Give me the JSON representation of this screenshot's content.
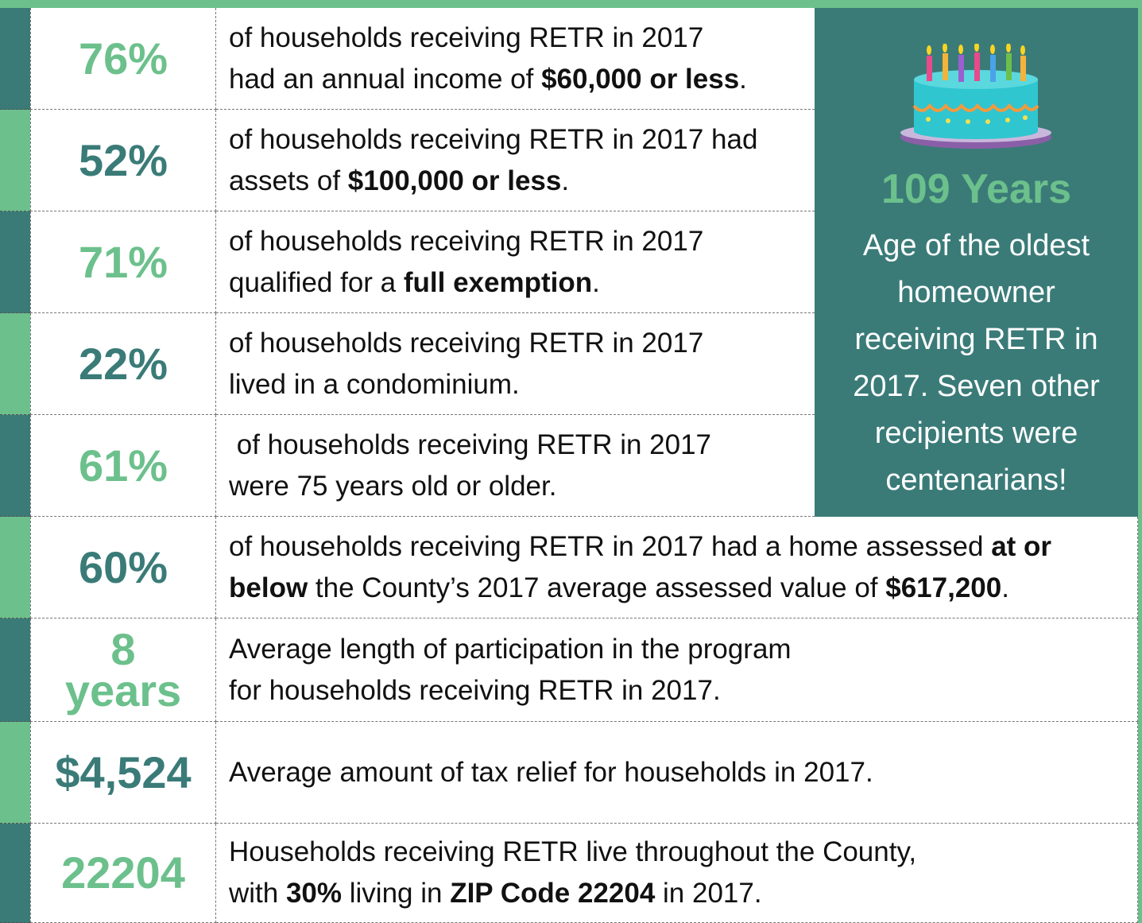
{
  "rows": [
    {
      "stat": [
        "76%"
      ],
      "stat_color": "#6cc08c",
      "stripe": "#3a7b78",
      "lines": [
        [
          {
            "text": "of households receiving RETR in 2017"
          }
        ],
        [
          {
            "text": "had an annual income of "
          },
          {
            "text": "$60,000 or less",
            "bold": true
          },
          {
            "text": "."
          }
        ]
      ]
    },
    {
      "stat": [
        "52%"
      ],
      "stat_color": "#3a7b78",
      "stripe": "#6cc08c",
      "lines": [
        [
          {
            "text": "of households receiving RETR in 2017 had"
          }
        ],
        [
          {
            "text": "assets of "
          },
          {
            "text": "$100,000 or less",
            "bold": true
          },
          {
            "text": "."
          }
        ]
      ]
    },
    {
      "stat": [
        "71%"
      ],
      "stat_color": "#6cc08c",
      "stripe": "#3a7b78",
      "lines": [
        [
          {
            "text": "of households receiving RETR in 2017"
          }
        ],
        [
          {
            "text": "qualified for a "
          },
          {
            "text": "full exemption",
            "bold": true
          },
          {
            "text": "."
          }
        ]
      ]
    },
    {
      "stat": [
        "22%"
      ],
      "stat_color": "#3a7b78",
      "stripe": "#6cc08c",
      "lines": [
        [
          {
            "text": "of households receiving RETR in 2017"
          }
        ],
        [
          {
            "text": "lived in a condominium."
          }
        ]
      ]
    },
    {
      "stat": [
        "61%"
      ],
      "stat_color": "#6cc08c",
      "stripe": "#3a7b78",
      "lines": [
        [
          {
            "text": " of households receiving RETR in 2017"
          }
        ],
        [
          {
            "text": "were 75 years old or older."
          }
        ]
      ]
    },
    {
      "stat": [
        "60%"
      ],
      "stat_color": "#3a7b78",
      "stripe": "#6cc08c",
      "lines": [
        [
          {
            "text": "of households receiving RETR in 2017 had a home assessed "
          },
          {
            "text": "at or",
            "bold": true
          }
        ],
        [
          {
            "text": "below",
            "bold": true
          },
          {
            "text": " the County’s 2017 average assessed value of "
          },
          {
            "text": "$617,200",
            "bold": true
          },
          {
            "text": "."
          }
        ]
      ]
    },
    {
      "stat": [
        "8",
        "years"
      ],
      "stat_color": "#6cc08c",
      "stripe": "#3a7b78",
      "lines": [
        [
          {
            "text": "Average length of participation in the program"
          }
        ],
        [
          {
            "text": "for households receiving RETR in 2017."
          }
        ]
      ]
    },
    {
      "stat": [
        "$4,524"
      ],
      "stat_color": "#3a7b78",
      "stripe": "#6cc08c",
      "lines": [
        [
          {
            "text": "Average amount of tax relief for households in 2017."
          }
        ]
      ]
    },
    {
      "stat": [
        "22204"
      ],
      "stat_color": "#6cc08c",
      "stripe": "#3a7b78",
      "lines": [
        [
          {
            "text": "Households receiving RETR live throughout the County,"
          }
        ],
        [
          {
            "text": "with "
          },
          {
            "text": "30%",
            "bold": true
          },
          {
            "text": " living in "
          },
          {
            "text": "ZIP Code 22204",
            "bold": true
          },
          {
            "text": " in 2017."
          }
        ]
      ]
    }
  ],
  "panel": {
    "title": "109 Years",
    "lines": [
      "Age of the oldest",
      "homeowner",
      "receiving RETR in",
      "2017. Seven other",
      "recipients were",
      "centenarians!"
    ]
  }
}
